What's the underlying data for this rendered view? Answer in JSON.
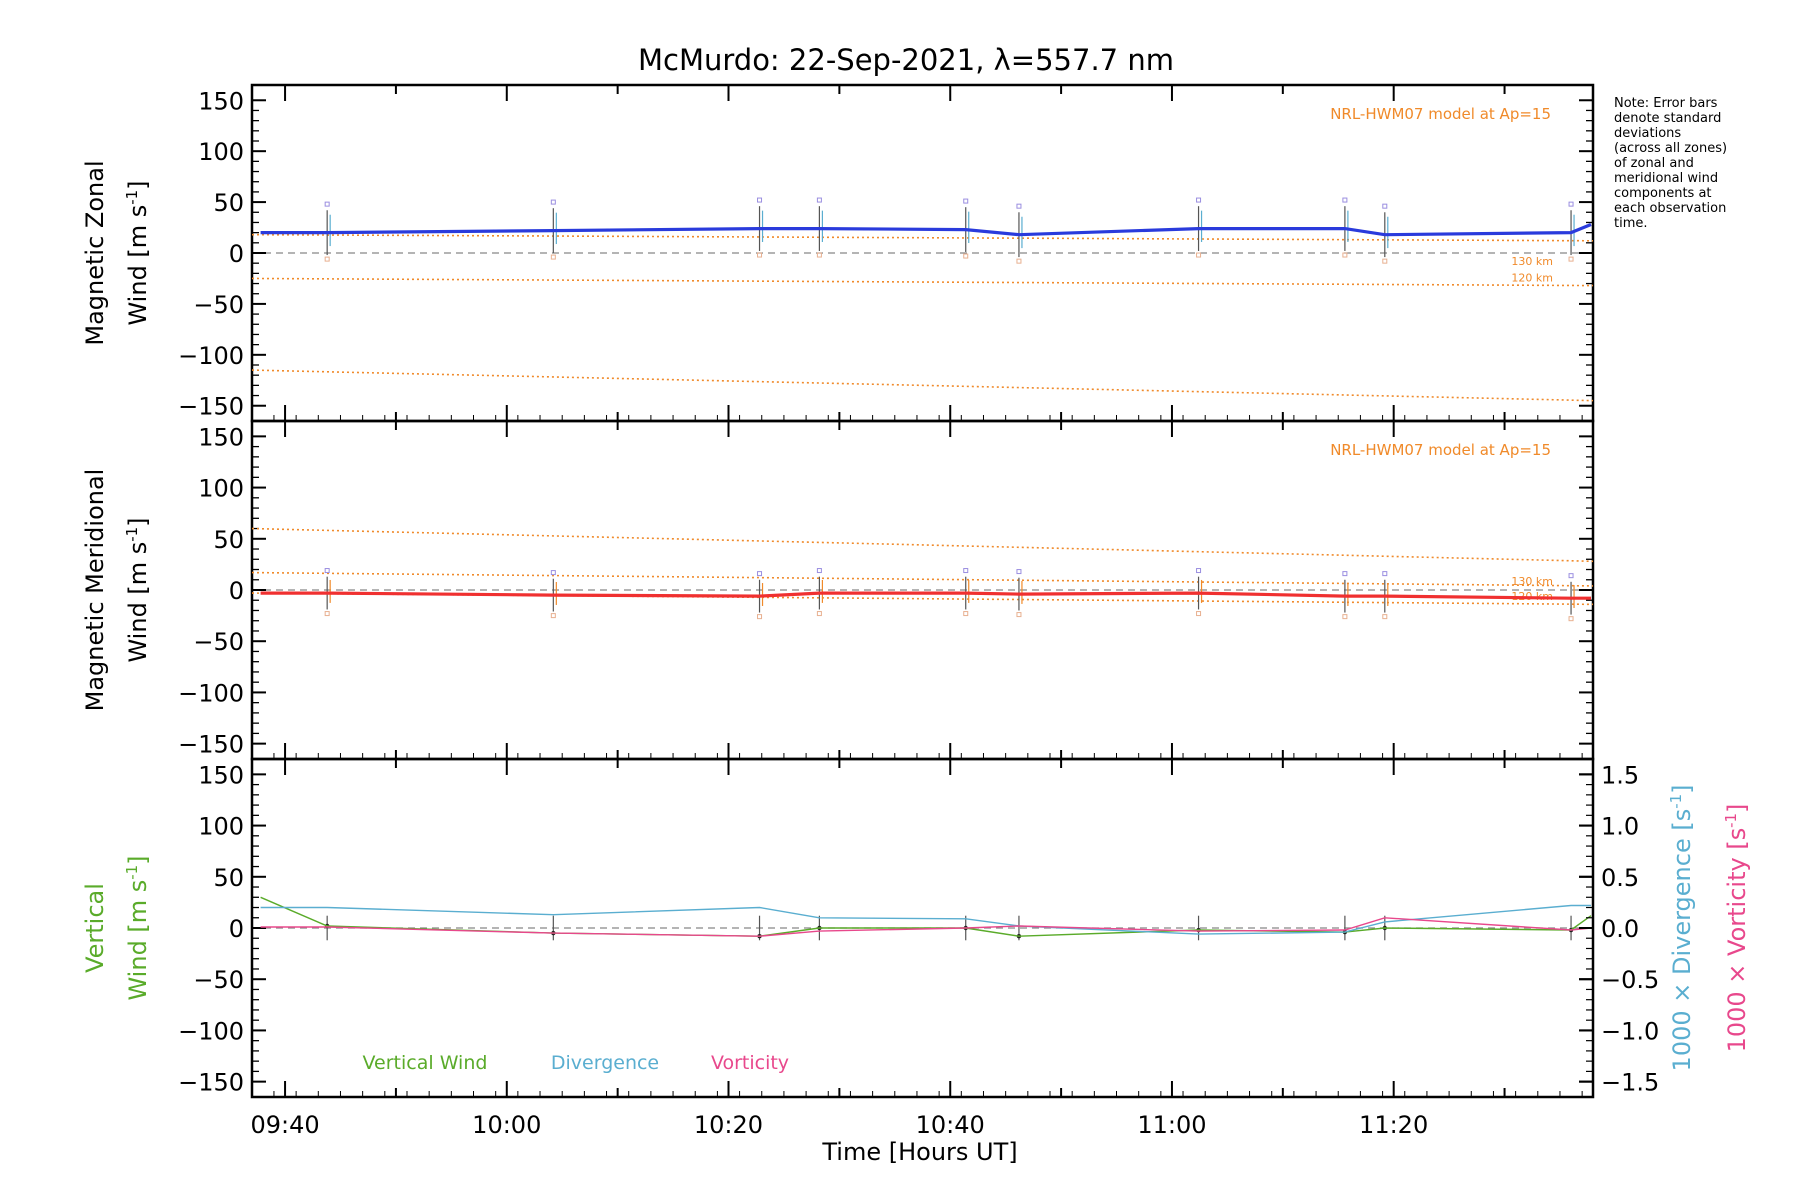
{
  "title": "McMurdo: 22-Sep-2021, λ=557.7 nm",
  "note": [
    "Note: Error bars",
    "denote standard",
    "deviations",
    "(across all zones)",
    "of zonal and",
    "meridional wind",
    "components at",
    "each observation",
    "time."
  ],
  "colors": {
    "zonal": "#2a3bdc",
    "meridional": "#f03030",
    "model": "#f08a2a",
    "vertical": "#5aab2a",
    "divergence": "#5aaed0",
    "vorticity": "#e8488c",
    "zero": "#888888"
  },
  "chart_data": [
    {
      "type": "line",
      "name": "zonal-panel",
      "ylabel_line1": "Magnetic Zonal",
      "ylabel_unit_prefix": "Wind [m s",
      "ylabel_unit_exp": "-1",
      "ylabel_unit_suffix": "]",
      "ylim": [
        -165,
        165
      ],
      "yticks": [
        150,
        100,
        50,
        0,
        -50,
        -100,
        -150
      ],
      "ytick_labels": [
        "150",
        "100",
        "50",
        "0",
        "−50",
        "−100",
        "−150"
      ],
      "model_label": "NRL-HWM07 model at Ap=15",
      "model_km_labels": [
        "130 km",
        "120 km"
      ],
      "model_lines": [
        [
          18,
          12
        ],
        [
          -25,
          -32
        ],
        [
          -115,
          -145
        ]
      ],
      "series": [
        {
          "name": "Zonal wind",
          "x": [
            9.63,
            9.73,
            10.07,
            10.38,
            10.47,
            10.69,
            10.77,
            11.04,
            11.26,
            11.32,
            11.6,
            11.63
          ],
          "y": [
            20,
            20,
            22,
            24,
            24,
            23,
            18,
            24,
            24,
            18,
            20,
            28
          ]
        }
      ],
      "error_x": [
        9.73,
        10.07,
        10.38,
        10.47,
        10.69,
        10.77,
        11.04,
        11.26,
        11.32,
        11.6
      ]
    },
    {
      "type": "line",
      "name": "meridional-panel",
      "ylabel_line1": "Magnetic Meridional",
      "ylabel_unit_prefix": "Wind [m s",
      "ylabel_unit_exp": "-1",
      "ylabel_unit_suffix": "]",
      "ylim": [
        -165,
        165
      ],
      "yticks": [
        150,
        100,
        50,
        0,
        -50,
        -100,
        -150
      ],
      "ytick_labels": [
        "150",
        "100",
        "50",
        "0",
        "−50",
        "−100",
        "−150"
      ],
      "model_label": "NRL-HWM07 model at Ap=15",
      "model_km_labels": [
        "130 km",
        "120 km"
      ],
      "model_lines": [
        [
          60,
          28
        ],
        [
          17,
          4
        ],
        [
          -3,
          -14
        ]
      ],
      "series": [
        {
          "name": "Meridional wind",
          "x": [
            9.63,
            9.73,
            10.07,
            10.38,
            10.47,
            10.69,
            10.77,
            11.04,
            11.26,
            11.32,
            11.6,
            11.63
          ],
          "y": [
            -3,
            -3,
            -5,
            -6,
            -3,
            -3,
            -4,
            -3,
            -6,
            -6,
            -8,
            -8
          ]
        }
      ],
      "error_x": [
        9.73,
        10.07,
        10.38,
        10.47,
        10.69,
        10.77,
        11.04,
        11.26,
        11.32,
        11.6
      ]
    },
    {
      "type": "line",
      "name": "vertical-panel",
      "ylabel_line1": "Vertical",
      "ylabel_unit_prefix": "Wind [m s",
      "ylabel_unit_exp": "-1",
      "ylabel_unit_suffix": "]",
      "ylim": [
        -165,
        165
      ],
      "yticks": [
        150,
        100,
        50,
        0,
        -50,
        -100,
        -150
      ],
      "ytick_labels": [
        "150",
        "100",
        "50",
        "0",
        "−50",
        "−100",
        "−150"
      ],
      "y2lim": [
        -1.65,
        1.65
      ],
      "y2ticks": [
        1.5,
        1.0,
        0.5,
        0.0,
        -0.5,
        -1.0,
        -1.5
      ],
      "y2tick_labels": [
        "1.5",
        "1.0",
        "0.5",
        "0.0",
        "−0.5",
        "−1.0",
        "−1.5"
      ],
      "y2label_divergence_prefix": "1000 × Divergence [s",
      "y2label_vorticity_prefix": "1000 × Vorticity [s",
      "y2label_exp": "-1",
      "y2label_suffix": "]",
      "legend": [
        "Vertical Wind",
        "Divergence",
        "Vorticity"
      ],
      "series": [
        {
          "name": "Vertical Wind",
          "axis": "left",
          "x": [
            9.63,
            9.73,
            10.07,
            10.38,
            10.47,
            10.69,
            10.77,
            11.04,
            11.26,
            11.32,
            11.6,
            11.63
          ],
          "y": [
            30,
            2,
            -5,
            -8,
            0,
            0,
            -8,
            -2,
            -4,
            0,
            -2,
            12
          ]
        },
        {
          "name": "Divergence",
          "axis": "right",
          "x": [
            9.63,
            9.73,
            10.07,
            10.38,
            10.47,
            10.69,
            10.77,
            11.04,
            11.26,
            11.32,
            11.6,
            11.63
          ],
          "y": [
            0.2,
            0.2,
            0.13,
            0.2,
            0.1,
            0.09,
            0.02,
            -0.06,
            -0.04,
            0.06,
            0.22,
            0.22
          ]
        },
        {
          "name": "Vorticity",
          "axis": "right",
          "x": [
            9.63,
            9.73,
            10.07,
            10.38,
            10.47,
            10.69,
            10.77,
            11.04,
            11.26,
            11.32,
            11.6,
            11.63
          ],
          "y": [
            0.01,
            0.01,
            -0.05,
            -0.08,
            -0.03,
            0.0,
            0.02,
            -0.03,
            -0.02,
            0.1,
            -0.02,
            0.0
          ]
        }
      ],
      "error_x": [
        9.73,
        10.07,
        10.38,
        10.47,
        10.69,
        10.77,
        11.04,
        11.26,
        11.32,
        11.6
      ]
    }
  ],
  "xaxis": {
    "label": "Time [Hours UT]",
    "xlim": [
      9.617,
      11.633
    ],
    "major_ticks": [
      9.6667,
      10.0,
      10.3333,
      10.6667,
      11.0,
      11.3333
    ],
    "tick_labels": [
      "09:40",
      "10:00",
      "10:20",
      "10:40",
      "11:00",
      "11:20"
    ]
  }
}
